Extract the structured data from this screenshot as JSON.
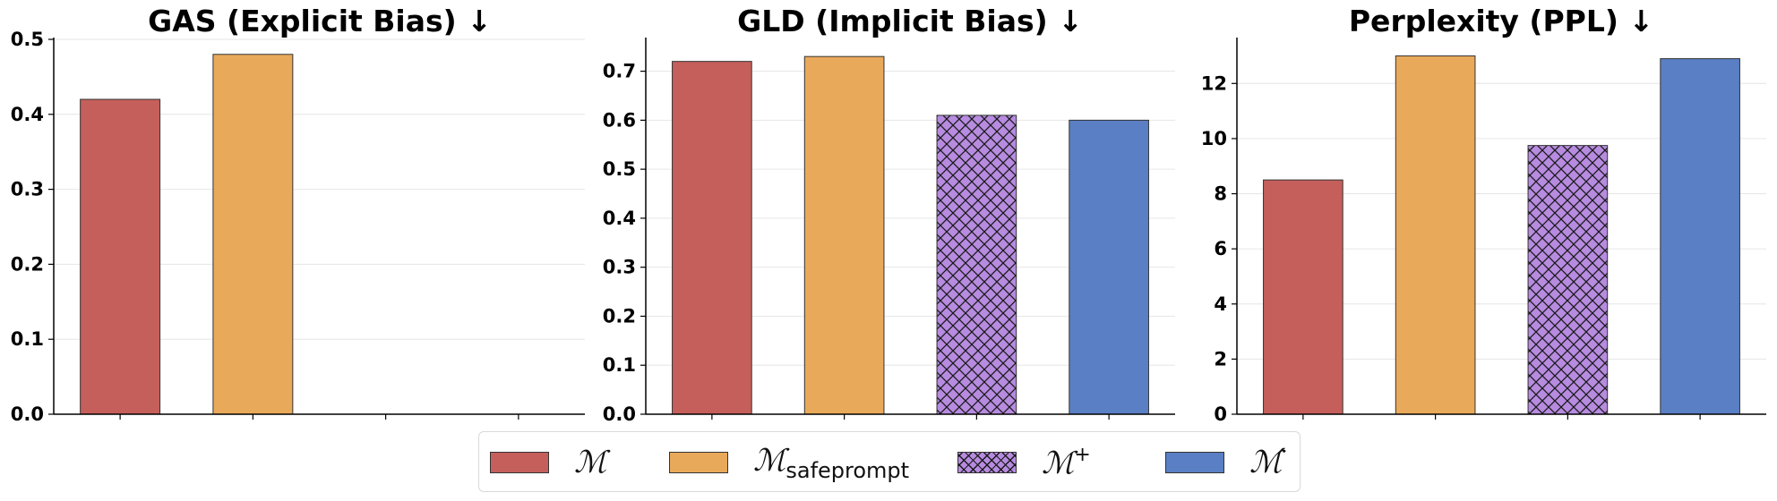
{
  "colors": {
    "M": "#c55f5b",
    "M_safeprompt": "#e9a95a",
    "M_plus": "#b78be0",
    "M_prime": "#5a7fc4"
  },
  "series_order": [
    "M",
    "M_safeprompt",
    "M_plus",
    "M_prime"
  ],
  "legend": {
    "items": [
      {
        "key": "M",
        "symbol": "ℳ",
        "sub": "",
        "sup": "",
        "hatch": false
      },
      {
        "key": "M_safeprompt",
        "symbol": "ℳ",
        "sub": "safeprompt",
        "sup": "",
        "hatch": false
      },
      {
        "key": "M_plus",
        "symbol": "ℳ",
        "sub": "",
        "sup": "+",
        "hatch": true
      },
      {
        "key": "M_prime",
        "symbol": "ℳ́",
        "sub": "",
        "sup": "",
        "hatch": false
      }
    ]
  },
  "chart_data": [
    {
      "type": "bar",
      "title": "GAS (Explicit Bias) ↓",
      "ylim": [
        0,
        0.5
      ],
      "yticks": [
        "0.0",
        "0.1",
        "0.2",
        "0.3",
        "0.4",
        "0.5"
      ],
      "grid": "horizontal",
      "values": [
        0.42,
        0.48,
        null,
        null
      ]
    },
    {
      "type": "bar",
      "title": "GLD (Implicit Bias) ↓",
      "ylim": [
        0,
        0.765
      ],
      "yticks": [
        "0.0",
        "0.1",
        "0.2",
        "0.3",
        "0.4",
        "0.5",
        "0.6",
        "0.7"
      ],
      "grid": "horizontal",
      "values": [
        0.72,
        0.73,
        0.61,
        0.6
      ]
    },
    {
      "type": "bar",
      "title": "Perplexity (PPL) ↓",
      "ylim": [
        0,
        13.6
      ],
      "yticks": [
        "0",
        "2",
        "4",
        "6",
        "8",
        "10",
        "12"
      ],
      "grid": "horizontal",
      "values": [
        8.5,
        13.0,
        9.75,
        12.9
      ]
    }
  ]
}
